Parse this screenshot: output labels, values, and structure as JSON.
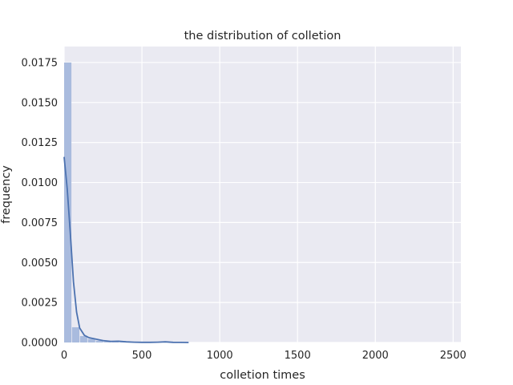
{
  "chart_data": {
    "type": "bar",
    "title": "the distribution of colletion",
    "xlabel": "colletion times",
    "ylabel": "frequency",
    "xlim": [
      0,
      2550
    ],
    "ylim": [
      0,
      0.0185
    ],
    "x_ticks": [
      0,
      500,
      1000,
      1500,
      2000,
      2500
    ],
    "x_tick_labels": [
      "0",
      "500",
      "1000",
      "1500",
      "2000",
      "2500"
    ],
    "y_ticks": [
      0,
      0.0025,
      0.005,
      0.0075,
      0.01,
      0.0125,
      0.015,
      0.0175
    ],
    "y_tick_labels": [
      "0.0000",
      "0.0025",
      "0.0050",
      "0.0075",
      "0.0100",
      "0.0125",
      "0.0150",
      "0.0175"
    ],
    "grid": true,
    "histogram": {
      "bin_width": 51,
      "bins": [
        {
          "x0": 0,
          "x1": 51,
          "density": 0.0175
        },
        {
          "x0": 51,
          "x1": 102,
          "density": 0.00095
        },
        {
          "x0": 102,
          "x1": 153,
          "density": 0.0004
        },
        {
          "x0": 153,
          "x1": 204,
          "density": 0.00022
        },
        {
          "x0": 204,
          "x1": 255,
          "density": 0.00012
        },
        {
          "x0": 255,
          "x1": 306,
          "density": 6e-05
        },
        {
          "x0": 306,
          "x1": 357,
          "density": 8e-05
        },
        {
          "x0": 357,
          "x1": 408,
          "density": 4e-05
        },
        {
          "x0": 408,
          "x1": 459,
          "density": 3e-05
        },
        {
          "x0": 459,
          "x1": 510,
          "density": 2e-05
        },
        {
          "x0": 612,
          "x1": 663,
          "density": 3e-05
        },
        {
          "x0": 663,
          "x1": 714,
          "density": 2e-05
        }
      ]
    },
    "kde": {
      "x": [
        0,
        20,
        40,
        60,
        80,
        100,
        130,
        160,
        200,
        250,
        300,
        350,
        400,
        450,
        500,
        550,
        600,
        650,
        700,
        750,
        800
      ],
      "y": [
        0.0116,
        0.0096,
        0.0068,
        0.0038,
        0.0019,
        0.0009,
        0.00045,
        0.0003,
        0.00022,
        0.00012,
        7e-05,
        8e-05,
        4e-05,
        2e-05,
        1e-05,
        1e-05,
        2e-05,
        4e-05,
        1e-05,
        5e-06,
        0.0
      ]
    },
    "colors": {
      "bar": "#a9bbde",
      "line": "#4c72b0",
      "background": "#eaeaf2",
      "grid": "#ffffff"
    }
  }
}
